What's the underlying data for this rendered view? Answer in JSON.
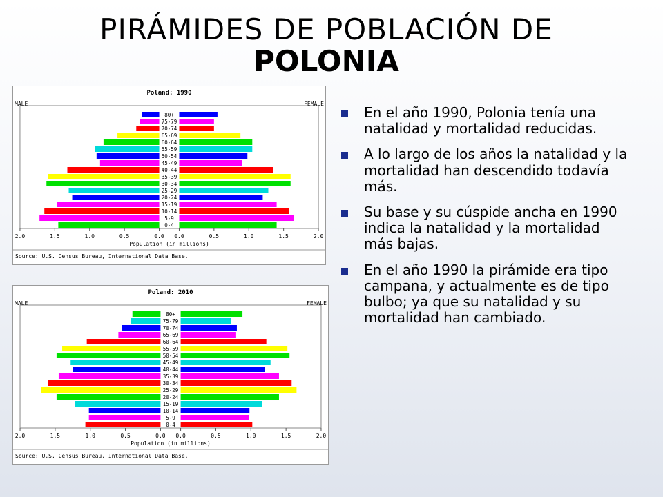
{
  "title": {
    "line1": "PIRÁMIDES DE POBLACIÓN DE",
    "line2": "POLONIA"
  },
  "bullets": [
    "En el año 1990, Polonia tenía una natalidad y mortalidad reducidas.",
    "A lo largo de los años la natalidad y la mortalidad han descendido todavía más.",
    "Su base y su cúspide ancha en 1990 indica la natalidad y la mortalidad más bajas.",
    "En el año 1990 la pirámide era tipo campana, y actualmente es de tipo bulbo; ya que su natalidad y su mortalidad han cambiado."
  ],
  "colors": {
    "bullet": "#1a2d8f",
    "bar_cycle": [
      "#00e000",
      "#ff00ff",
      "#ff0000",
      "#00e000",
      "#0000ff",
      "#00dada",
      "#00e000"
    ]
  },
  "chart_data": [
    {
      "type": "bar",
      "title": "Poland: 1990",
      "left_label": "MALE",
      "right_label": "FEMALE",
      "xlabel": "Population (in millions)",
      "source": "Source: U.S. Census Bureau, International Data Base.",
      "xlim": [
        0,
        2.0
      ],
      "ticks": [
        "2.0",
        "1.5",
        "1.0",
        "0.5",
        "0.0",
        "0.0",
        "0.5",
        "1.0",
        "1.5",
        "2.0"
      ],
      "categories": [
        "0-4",
        "5-9",
        "10-14",
        "15-19",
        "20-24",
        "25-29",
        "30-34",
        "35-39",
        "40-44",
        "45-49",
        "50-54",
        "55-59",
        "60-64",
        "65-69",
        "70-74",
        "75-79",
        "80+"
      ],
      "colors": [
        "#00e000",
        "#ff00ff",
        "#ff0000",
        "#ff00ff",
        "#0000ff",
        "#00dada",
        "#00e000",
        "#ffff00",
        "#ff0000",
        "#ff00ff",
        "#0000ff",
        "#00dada",
        "#00e000",
        "#ffff00",
        "#ff0000",
        "#ff00ff",
        "#0000ff"
      ],
      "series": [
        {
          "name": "MALE",
          "values": [
            1.45,
            1.72,
            1.65,
            1.47,
            1.25,
            1.3,
            1.62,
            1.6,
            1.32,
            0.85,
            0.9,
            0.92,
            0.8,
            0.6,
            0.33,
            0.28,
            0.25
          ]
        },
        {
          "name": "FEMALE",
          "values": [
            1.4,
            1.65,
            1.58,
            1.4,
            1.2,
            1.28,
            1.6,
            1.6,
            1.35,
            0.9,
            0.98,
            1.05,
            1.05,
            0.88,
            0.5,
            0.5,
            0.55
          ]
        }
      ]
    },
    {
      "type": "bar",
      "title": "Poland: 2010",
      "left_label": "MALE",
      "right_label": "FEMALE",
      "xlabel": "Population (in millions)",
      "source": "Source: U.S. Census Bureau, International Data Base.",
      "xlim": [
        0,
        2.0
      ],
      "ticks": [
        "2.0",
        "1.5",
        "1.0",
        "0.5",
        "0.0",
        "0.0",
        "0.5",
        "1.0",
        "1.5",
        "2.0"
      ],
      "categories": [
        "0-4",
        "5-9",
        "10-14",
        "15-19",
        "20-24",
        "25-29",
        "30-34",
        "35-39",
        "40-44",
        "45-49",
        "50-54",
        "55-59",
        "60-64",
        "65-69",
        "70-74",
        "75-79",
        "80+"
      ],
      "colors": [
        "#ff0000",
        "#ff00ff",
        "#0000ff",
        "#00dada",
        "#00e000",
        "#ffff00",
        "#ff0000",
        "#ff00ff",
        "#0000ff",
        "#00dada",
        "#00e000",
        "#ffff00",
        "#ff0000",
        "#ff00ff",
        "#0000ff",
        "#00dada",
        "#00e000"
      ],
      "series": [
        {
          "name": "MALE",
          "values": [
            1.07,
            1.02,
            1.02,
            1.22,
            1.48,
            1.7,
            1.6,
            1.45,
            1.25,
            1.28,
            1.48,
            1.4,
            1.05,
            0.6,
            0.55,
            0.42,
            0.4
          ]
        },
        {
          "name": "FEMALE",
          "values": [
            1.02,
            0.97,
            0.98,
            1.16,
            1.4,
            1.65,
            1.58,
            1.4,
            1.2,
            1.28,
            1.55,
            1.52,
            1.22,
            0.78,
            0.8,
            0.72,
            0.88
          ]
        }
      ]
    }
  ]
}
